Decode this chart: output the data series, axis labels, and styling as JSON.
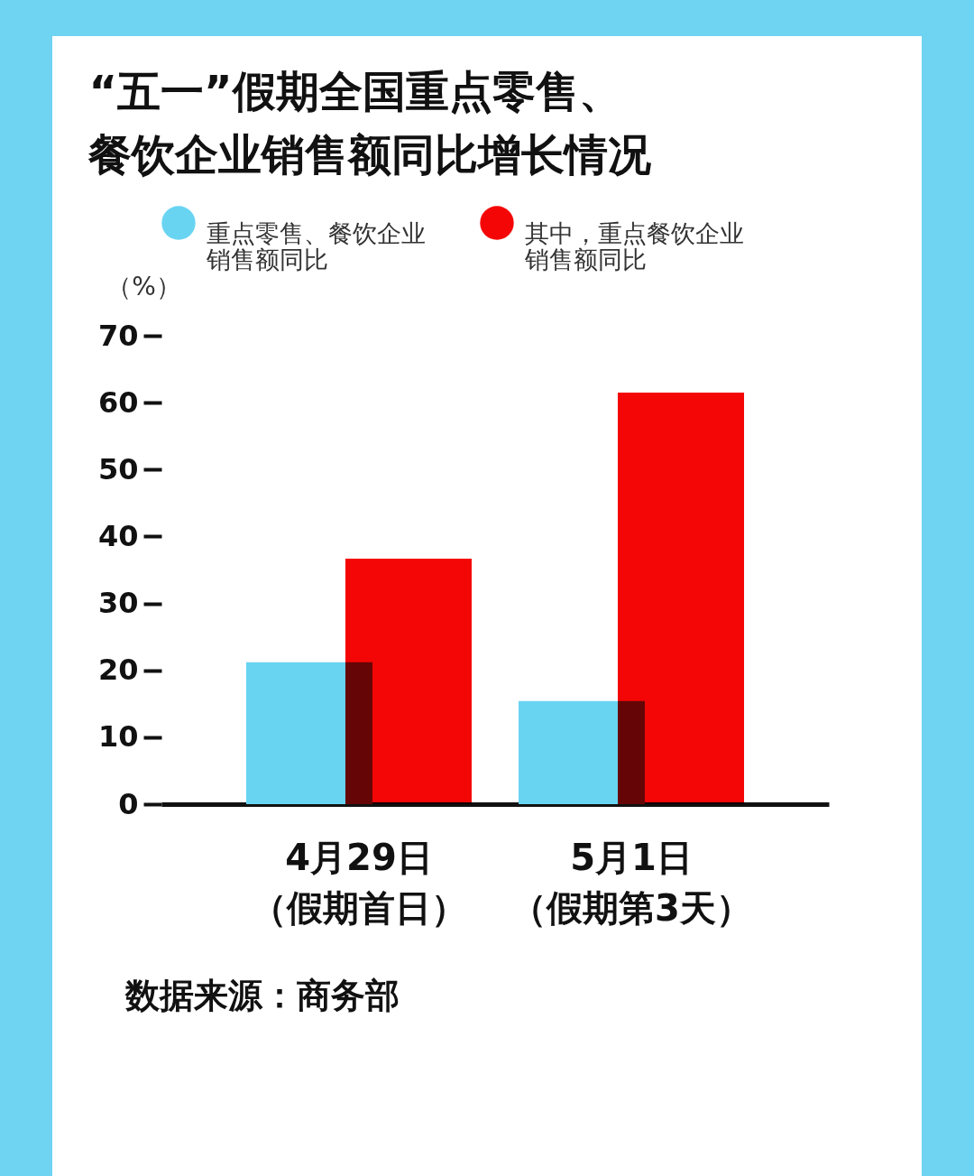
{
  "chart_data": {
    "type": "bar",
    "title": [
      "“五一”假期全国重点零售、",
      "餐饮企业销售额同比增长情况"
    ],
    "ylabel": "（%）",
    "categories": [
      "4月29日（假期首日）",
      "5月1日（假期第3天）"
    ],
    "series": [
      {
        "name": "重点零售、餐饮企业销售额同比",
        "color": "#69d4f2",
        "values": [
          21.2,
          15.4
        ]
      },
      {
        "name": "其中，重点餐饮企业销售额同比",
        "color": "#f50606",
        "values": [
          36.7,
          61.5
        ]
      }
    ],
    "ylim": [
      0,
      70
    ],
    "yticks": [
      0,
      10,
      20,
      30,
      40,
      50,
      60,
      70
    ],
    "grid": false,
    "legend": "top",
    "annotations": [
      "数据来源：商务部"
    ]
  }
}
